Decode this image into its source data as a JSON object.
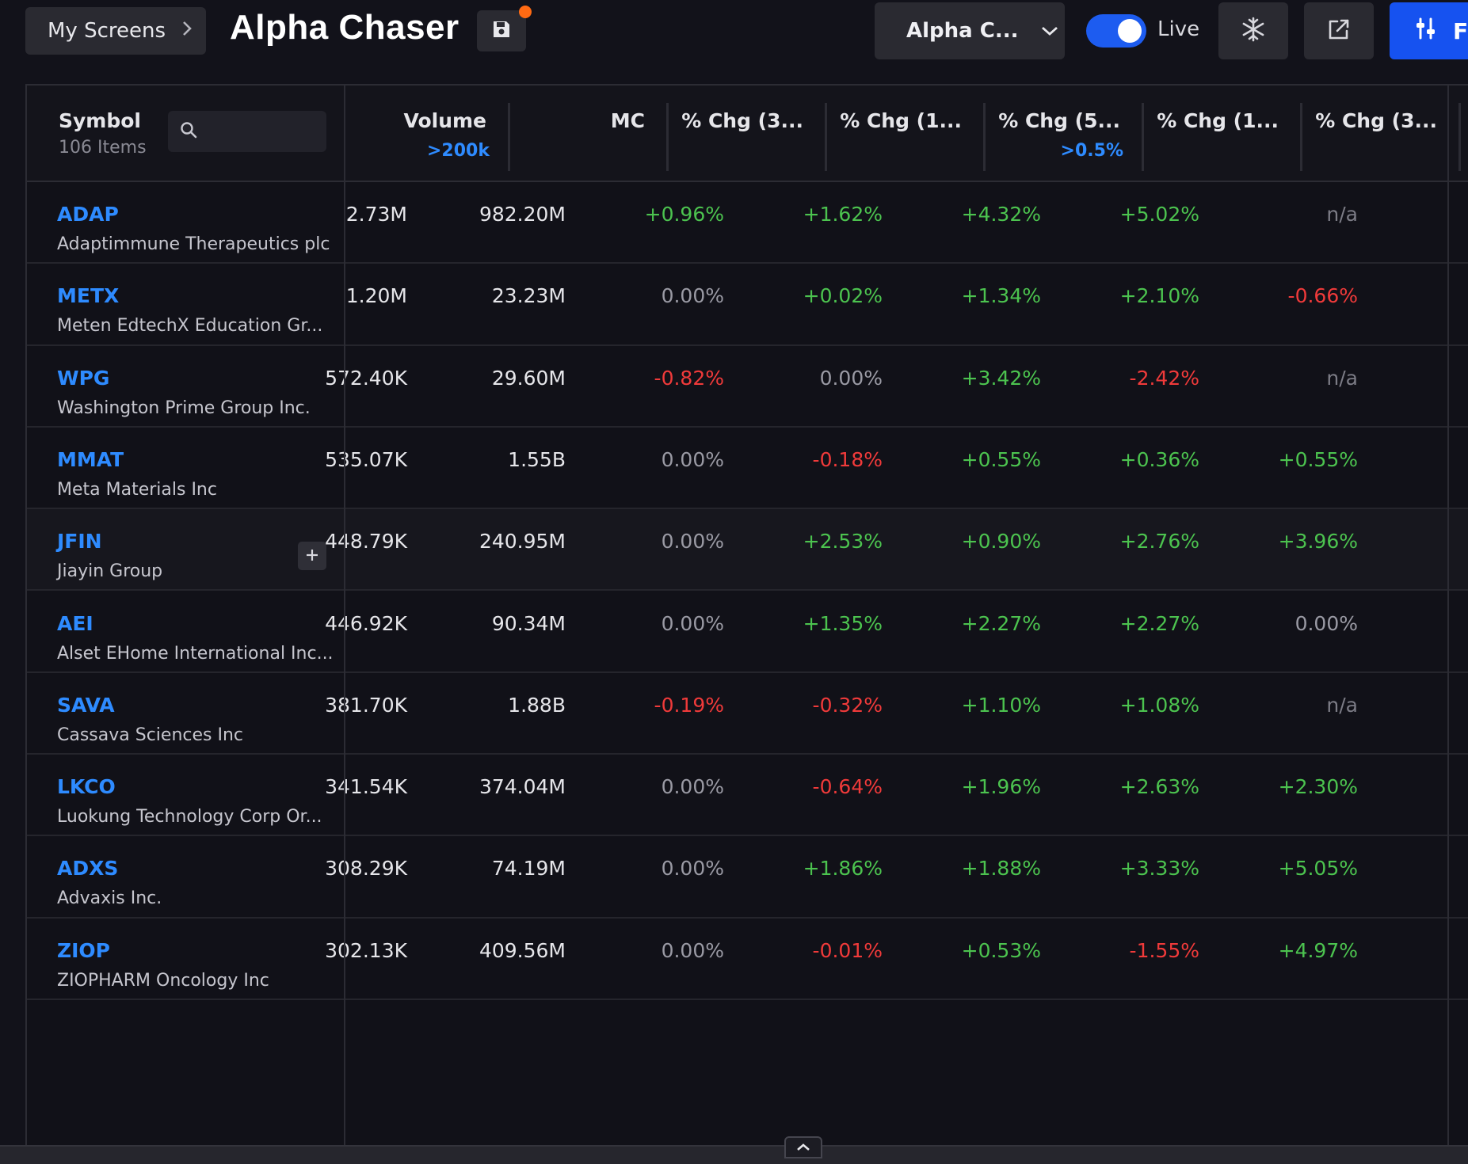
{
  "header": {
    "my_screens_label": "My Screens",
    "title": "Alpha Chaser",
    "screen_dropdown_label": "Alpha C...",
    "live_label": "Live",
    "live_enabled": true,
    "filters_label": "Fi"
  },
  "colors": {
    "accent_blue": "#2e8bff",
    "primary_button": "#1652f0",
    "positive": "#4cc34f",
    "negative": "#f03a3a",
    "unsaved_dot": "#ff6a13"
  },
  "icons": [
    "chevron-right-icon",
    "save-icon",
    "chevron-down-icon",
    "freeze-icon",
    "popout-icon",
    "filters-icon",
    "search-icon",
    "plus-icon",
    "chevron-up-icon"
  ],
  "table": {
    "symbol_header": "Symbol",
    "item_count": "106 Items",
    "search_placeholder": "",
    "columns": [
      {
        "label": "Volume",
        "filter": ">200k"
      },
      {
        "label": "MC",
        "filter": ""
      },
      {
        "label": "% Chg (3...",
        "filter": ""
      },
      {
        "label": "% Chg (1...",
        "filter": ""
      },
      {
        "label": "% Chg (5...",
        "filter": ">0.5%"
      },
      {
        "label": "% Chg (1...",
        "filter": ""
      },
      {
        "label": "% Chg (3...",
        "filter": ""
      }
    ],
    "rows": [
      {
        "symbol": "ADAP",
        "name": "Adaptimmune Therapeutics plc",
        "volume": "2.73M",
        "mc": "982.20M",
        "chg": [
          "+0.96%",
          "+1.62%",
          "+4.32%",
          "+5.02%",
          "n/a"
        ]
      },
      {
        "symbol": "METX",
        "name": "Meten EdtechX Education Gr...",
        "volume": "1.20M",
        "mc": "23.23M",
        "chg": [
          "0.00%",
          "+0.02%",
          "+1.34%",
          "+2.10%",
          "-0.66%"
        ]
      },
      {
        "symbol": "WPG",
        "name": "Washington Prime Group Inc.",
        "volume": "572.40K",
        "mc": "29.60M",
        "chg": [
          "-0.82%",
          "0.00%",
          "+3.42%",
          "-2.42%",
          "n/a"
        ]
      },
      {
        "symbol": "MMAT",
        "name": "Meta Materials Inc",
        "volume": "535.07K",
        "mc": "1.55B",
        "chg": [
          "0.00%",
          "-0.18%",
          "+0.55%",
          "+0.36%",
          "+0.55%"
        ]
      },
      {
        "symbol": "JFIN",
        "name": "Jiayin Group",
        "volume": "448.79K",
        "mc": "240.95M",
        "chg": [
          "0.00%",
          "+2.53%",
          "+0.90%",
          "+2.76%",
          "+3.96%"
        ],
        "hover": true
      },
      {
        "symbol": "AEI",
        "name": "Alset EHome International Inc...",
        "volume": "446.92K",
        "mc": "90.34M",
        "chg": [
          "0.00%",
          "+1.35%",
          "+2.27%",
          "+2.27%",
          "0.00%"
        ]
      },
      {
        "symbol": "SAVA",
        "name": "Cassava Sciences Inc",
        "volume": "381.70K",
        "mc": "1.88B",
        "chg": [
          "-0.19%",
          "-0.32%",
          "+1.10%",
          "+1.08%",
          "n/a"
        ]
      },
      {
        "symbol": "LKCO",
        "name": "Luokung Technology Corp Or...",
        "volume": "341.54K",
        "mc": "374.04M",
        "chg": [
          "0.00%",
          "-0.64%",
          "+1.96%",
          "+2.63%",
          "+2.30%"
        ]
      },
      {
        "symbol": "ADXS",
        "name": "Advaxis Inc.",
        "volume": "308.29K",
        "mc": "74.19M",
        "chg": [
          "0.00%",
          "+1.86%",
          "+1.88%",
          "+3.33%",
          "+5.05%"
        ]
      },
      {
        "symbol": "ZIOP",
        "name": "ZIOPHARM Oncology Inc",
        "volume": "302.13K",
        "mc": "409.56M",
        "chg": [
          "0.00%",
          "-0.01%",
          "+0.53%",
          "-1.55%",
          "+4.97%"
        ]
      }
    ]
  }
}
